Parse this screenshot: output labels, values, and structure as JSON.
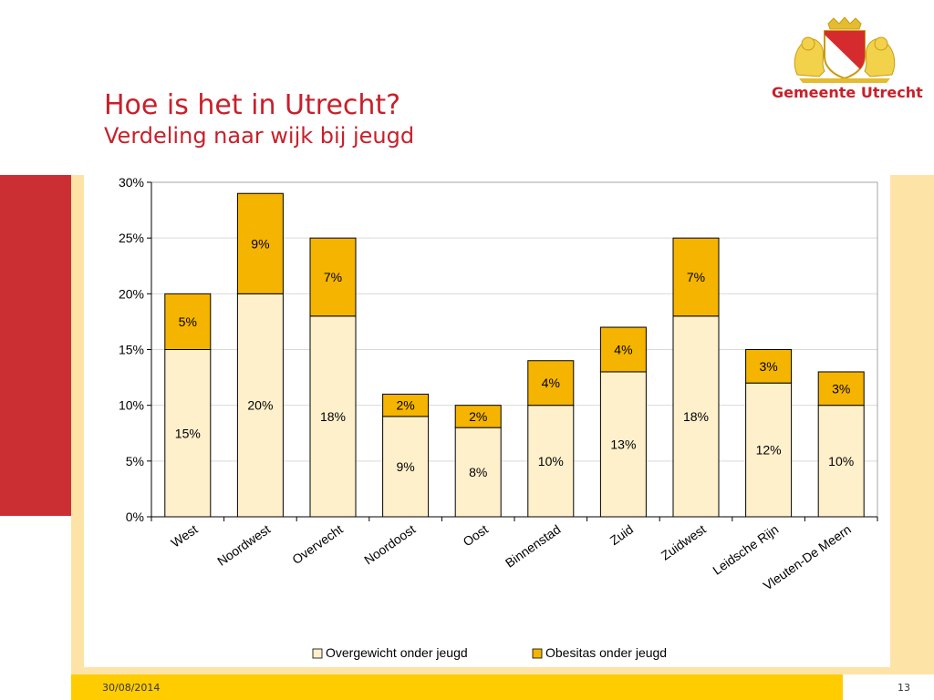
{
  "slide": {
    "title": "Hoe is het in Utrecht?",
    "subtitle": "Verdeling naar wijk bij jeugd",
    "date": "30/08/2014",
    "page_number": "13"
  },
  "logo": {
    "text": "Gemeente Utrecht",
    "icon": "coat-of-arms-icon"
  },
  "colors": {
    "title": "#c8202a",
    "accent_red": "#cc2f33",
    "cream": "#fde4a6",
    "footer_yellow": "#ffcc00",
    "series_overgewicht": "#fff0cc",
    "series_obesitas": "#f5b400"
  },
  "chart_data": {
    "type": "bar",
    "stacked": true,
    "categories": [
      "West",
      "Noordwest",
      "Overvecht",
      "Noordoost",
      "Oost",
      "Binnenstad",
      "Zuid",
      "Zuidwest",
      "Leidsche Rijn",
      "Vleuten-De Meern"
    ],
    "series": [
      {
        "name": "Overgewicht onder jeugd",
        "values": [
          15,
          20,
          18,
          9,
          8,
          10,
          13,
          18,
          12,
          10
        ],
        "labels": [
          "15%",
          "20%",
          "18%",
          "9%",
          "8%",
          "10%",
          "13%",
          "18%",
          "12%",
          "10%"
        ]
      },
      {
        "name": "Obesitas onder jeugd",
        "values": [
          5,
          9,
          7,
          2,
          2,
          4,
          4,
          7,
          3,
          3
        ],
        "labels": [
          "5%",
          "9%",
          "7%",
          "2%",
          "2%",
          "4%",
          "4%",
          "7%",
          "3%",
          "3%"
        ]
      }
    ],
    "yticks": [
      "0%",
      "5%",
      "10%",
      "15%",
      "20%",
      "25%",
      "30%"
    ],
    "ylim": [
      0,
      30
    ],
    "grid": true,
    "legend_position": "bottom"
  }
}
